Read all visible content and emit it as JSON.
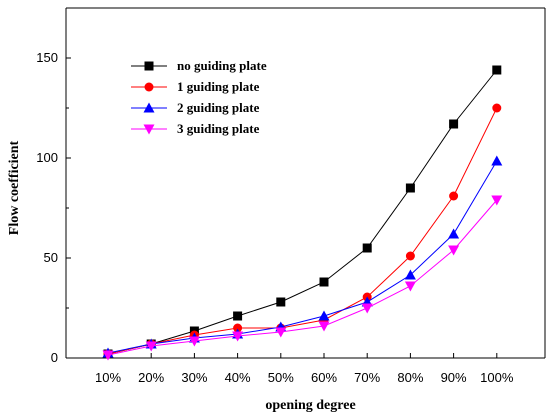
{
  "chart_data": {
    "type": "line",
    "xlabel": "opening degree",
    "ylabel": "Flow coefficient",
    "ylim": [
      0,
      175
    ],
    "yticks": [
      0,
      50,
      100,
      150
    ],
    "categories": [
      "10%",
      "20%",
      "30%",
      "40%",
      "50%",
      "60%",
      "70%",
      "80%",
      "90%",
      "100%"
    ],
    "legend_position": "top-left",
    "grid": false,
    "series": [
      {
        "name": "no guiding plate",
        "color": "#000000",
        "marker": "square",
        "values": [
          2,
          7,
          13.5,
          21,
          28,
          38,
          55,
          85,
          117,
          144
        ]
      },
      {
        "name": "1 guiding plate",
        "color": "#ff0000",
        "marker": "circle",
        "values": [
          2,
          7,
          11.5,
          15,
          15,
          19,
          30.5,
          51,
          81,
          125
        ]
      },
      {
        "name": "2 guiding plate",
        "color": "#0000ff",
        "marker": "triangle-up",
        "values": [
          2.5,
          7,
          10,
          12,
          15.5,
          21,
          28,
          41.5,
          62,
          98.5
        ]
      },
      {
        "name": "3 guiding plate",
        "color": "#ff00ff",
        "marker": "triangle-down",
        "values": [
          1.5,
          6,
          8.5,
          11,
          13,
          16,
          25,
          36,
          54,
          79
        ]
      }
    ]
  }
}
